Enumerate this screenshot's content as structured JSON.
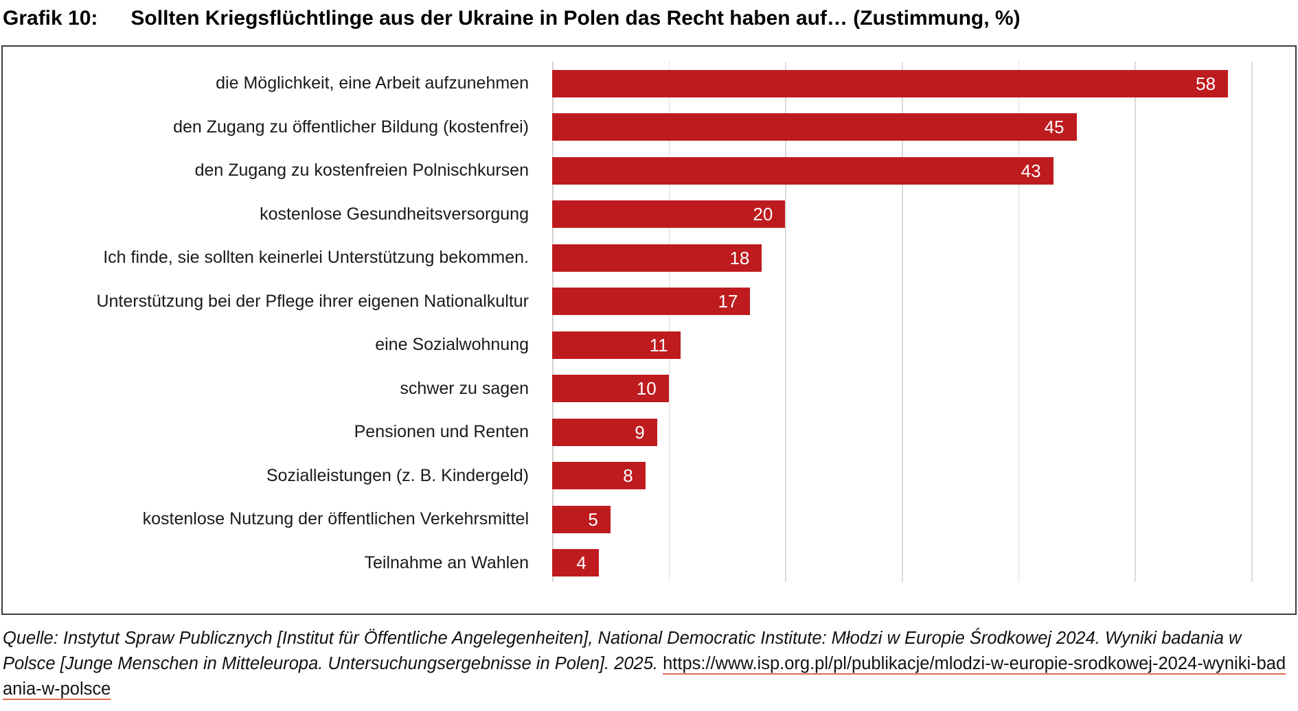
{
  "title": {
    "label": "Grafik 10:",
    "text": "Sollten Kriegsflüchtlinge aus der Ukraine in Polen das Recht haben auf… (Zustimmung, %)"
  },
  "chart_data": {
    "type": "bar",
    "orientation": "horizontal",
    "title": "Sollten Kriegsflüchtlinge aus der Ukraine in Polen das Recht haben auf… (Zustimmung, %)",
    "categories": [
      "die Möglichkeit, eine Arbeit aufzunehmen",
      "den Zugang zu öffentlicher Bildung (kostenfrei)",
      "den Zugang zu kostenfreien Polnischkursen",
      "kostenlose Gesundheitsversorgung",
      "Ich finde, sie sollten keinerlei Unterstützung bekommen.",
      "Unterstützung bei der Pflege ihrer eigenen Nationalkultur",
      "eine Sozialwohnung",
      "schwer zu sagen",
      "Pensionen und Renten",
      "Sozialleistungen (z. B. Kindergeld)",
      "kostenlose Nutzung der öffentlichen Verkehrsmittel",
      "Teilnahme an Wahlen"
    ],
    "values": [
      58,
      45,
      43,
      20,
      18,
      17,
      11,
      10,
      9,
      8,
      5,
      4
    ],
    "xlabel": "",
    "ylabel": "",
    "xlim": [
      0,
      63.3
    ],
    "gridlines": [
      0,
      10,
      20,
      30,
      40,
      50,
      60
    ],
    "grid": true,
    "legend": "none",
    "bar_color": "#be1b1f",
    "value_label_color": "#ffffff"
  },
  "source": {
    "italic_text": "Quelle: Instytut Spraw Publicznych [Institut für Öffentliche Angelegenheiten], National Democratic Institute: Młodzi w Europie Środkowej 2024. Wyniki badania w Polsce [Junge Menschen in Mitteleuropa. Untersuchungsergebnisse in Polen]. 2025. ",
    "link_text": "https://www.isp.org.pl/pl/publikacje/mlodzi-w-europie-srodkowej-2024-wyniki-badania-w-polsce",
    "link_underline_color": "#e2674f"
  }
}
